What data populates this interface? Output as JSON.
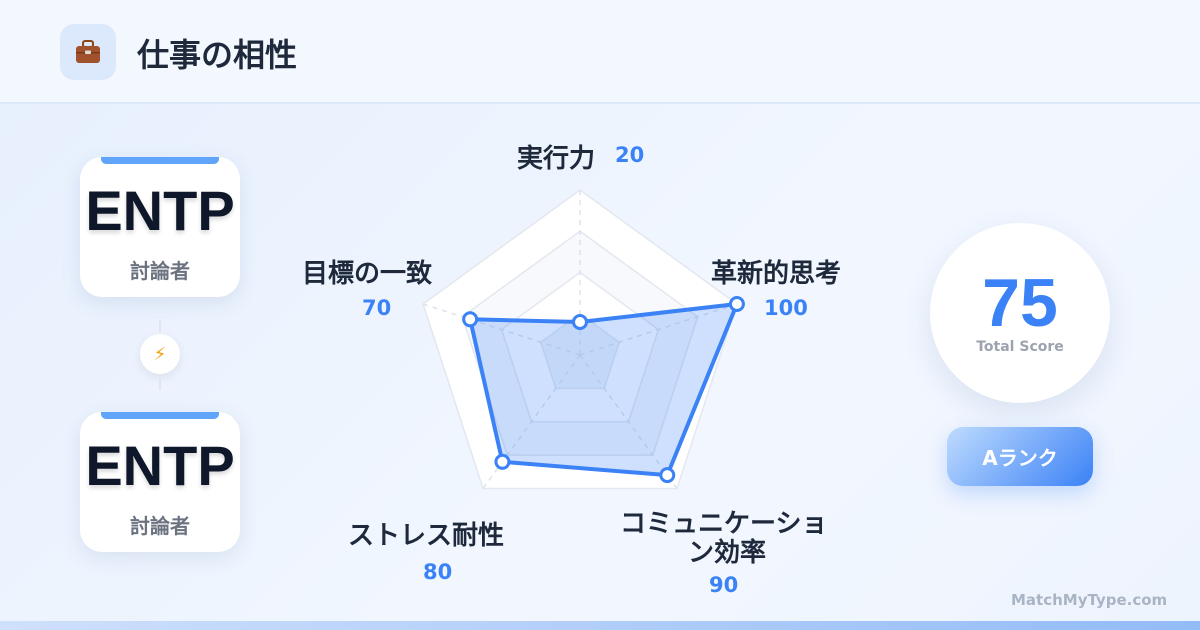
{
  "header": {
    "icon": "briefcase-icon",
    "title": "仕事の相性"
  },
  "types": [
    {
      "code": "ENTP",
      "name": "討論者"
    },
    {
      "code": "ENTP",
      "name": "討論者"
    }
  ],
  "connector_icon": "lightning-icon",
  "chart_data": {
    "type": "radar",
    "axes": [
      "実行力",
      "革新的思考",
      "コミュニケーション効率",
      "ストレス耐性",
      "目標の一致"
    ],
    "axis_label_lines": [
      [
        "実行力"
      ],
      [
        "革新的思考"
      ],
      [
        "コミュニケーショ",
        "ン効率"
      ],
      [
        "ストレス耐性"
      ],
      [
        "目標の一致"
      ]
    ],
    "values": [
      20,
      100,
      90,
      80,
      70
    ],
    "value_labels": [
      "20",
      "100",
      "90",
      "80",
      "70"
    ],
    "range": [
      0,
      100
    ],
    "grid_levels": 4,
    "color": "#3b82f6"
  },
  "score": {
    "value": "75",
    "label": "Total Score"
  },
  "rank": {
    "label": "Aランク"
  },
  "footer": {
    "brand": "MatchMyType.com"
  }
}
